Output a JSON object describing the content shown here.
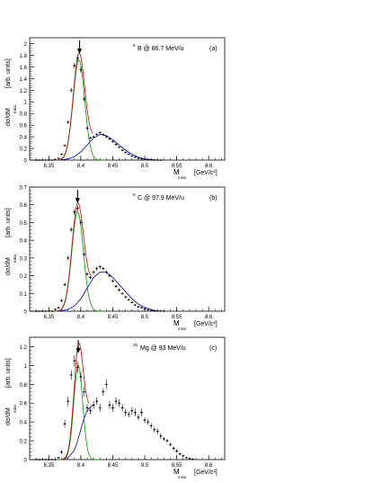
{
  "chart_data": [
    {
      "type": "scatter",
      "panel_label": "(a)",
      "beam_label": {
        "mass_number": "8",
        "text": "B @ 86.7 MeV/u"
      },
      "ylabel": {
        "main": "dσ/dM",
        "sub": "miss",
        "units": "[arb. units]"
      },
      "xlabel": {
        "main": "M",
        "sub": "miss",
        "units": "[GeV/c²]"
      },
      "xlim": [
        8.32,
        8.625
      ],
      "ylim": [
        0,
        2.1
      ],
      "x_ticks": [
        "8.35",
        "8.4",
        "8.45",
        "8.5",
        "8.55",
        "8.6"
      ],
      "y_ticks": [
        "0",
        "0.2",
        "0.4",
        "0.6",
        "0.8",
        "1",
        "1.2",
        "1.4",
        "1.6",
        "1.8",
        "2"
      ],
      "arrow_at": 8.398,
      "series": [
        {
          "x": [
            8.33,
            8.335,
            8.34,
            8.345,
            8.35,
            8.355,
            8.36,
            8.365,
            8.37,
            8.375,
            8.38,
            8.385,
            8.39,
            8.395,
            8.4,
            8.405,
            8.41,
            8.415,
            8.42,
            8.425,
            8.43,
            8.435,
            8.44,
            8.445,
            8.45,
            8.455,
            8.46,
            8.465,
            8.47,
            8.475,
            8.48,
            8.485,
            8.49,
            8.495,
            8.5,
            8.505,
            8.51,
            8.515,
            8.52,
            8.525
          ],
          "y": [
            0,
            0,
            0,
            0,
            0,
            0,
            0.01,
            0.03,
            0.1,
            0.25,
            0.65,
            1.2,
            1.62,
            1.75,
            1.55,
            1.05,
            0.55,
            0.38,
            0.4,
            0.44,
            0.47,
            0.44,
            0.4,
            0.36,
            0.32,
            0.27,
            0.22,
            0.17,
            0.13,
            0.1,
            0.07,
            0.05,
            0.03,
            0.02,
            0.01,
            0.01,
            0.005,
            0,
            0,
            0
          ],
          "yerr": [
            0,
            0,
            0,
            0,
            0,
            0,
            0.005,
            0.008,
            0.015,
            0.02,
            0.03,
            0.04,
            0.05,
            0.05,
            0.05,
            0.04,
            0.03,
            0.02,
            0.02,
            0.02,
            0.02,
            0.02,
            0.02,
            0.02,
            0.02,
            0.02,
            0.015,
            0.015,
            0.015,
            0.01,
            0.01,
            0.01,
            0.01,
            0.01,
            0.005,
            0.005,
            0.005,
            0,
            0,
            0
          ]
        }
      ],
      "fits": {
        "total": {
          "color": "#cc0000",
          "peak": 8.397,
          "width": 0.009,
          "amp": 1.72
        },
        "gauss": {
          "color": "#009900",
          "peak": 8.397,
          "width": 0.009,
          "amp": 1.72
        },
        "tail": {
          "color": "#0000cc",
          "x": [
            8.365,
            8.38,
            8.39,
            8.4,
            8.41,
            8.42,
            8.43,
            8.44,
            8.45,
            8.46,
            8.47,
            8.48,
            8.49,
            8.5,
            8.51,
            8.52
          ],
          "y": [
            0,
            0.02,
            0.06,
            0.14,
            0.26,
            0.38,
            0.44,
            0.42,
            0.35,
            0.26,
            0.17,
            0.1,
            0.05,
            0.02,
            0.01,
            0
          ]
        }
      }
    },
    {
      "type": "scatter",
      "panel_label": "(b)",
      "beam_label": {
        "mass_number": "9",
        "text": "C @ 97.9 MeV/u"
      },
      "ylabel": {
        "main": "dσ/dM",
        "sub": "miss",
        "units": "[arb. units]"
      },
      "xlabel": {
        "main": "M",
        "sub": "miss",
        "units": "[GeV/c²]"
      },
      "xlim": [
        8.32,
        8.625
      ],
      "ylim": [
        0,
        0.7
      ],
      "x_ticks": [
        "8.35",
        "8.4",
        "8.45",
        "8.5",
        "8.55",
        "8.6"
      ],
      "y_ticks": [
        "0",
        "0.1",
        "0.2",
        "0.3",
        "0.4",
        "0.5",
        "0.6",
        "0.7"
      ],
      "arrow_at": 8.395,
      "series": [
        {
          "x": [
            8.33,
            8.335,
            8.34,
            8.345,
            8.35,
            8.355,
            8.36,
            8.365,
            8.37,
            8.375,
            8.38,
            8.385,
            8.39,
            8.395,
            8.4,
            8.405,
            8.41,
            8.415,
            8.42,
            8.425,
            8.43,
            8.435,
            8.44,
            8.445,
            8.45,
            8.455,
            8.46,
            8.465,
            8.47,
            8.475,
            8.48,
            8.485,
            8.49,
            8.495,
            8.5,
            8.505,
            8.51,
            8.515,
            8.52,
            8.525,
            8.53
          ],
          "y": [
            0,
            0,
            0,
            0,
            0,
            0,
            0.01,
            0.02,
            0.06,
            0.15,
            0.3,
            0.46,
            0.56,
            0.58,
            0.5,
            0.32,
            0.21,
            0.19,
            0.22,
            0.24,
            0.25,
            0.24,
            0.22,
            0.2,
            0.17,
            0.14,
            0.12,
            0.1,
            0.08,
            0.065,
            0.05,
            0.035,
            0.025,
            0.02,
            0.012,
            0.008,
            0.005,
            0.003,
            0.002,
            0.001,
            0
          ],
          "yerr": [
            0,
            0,
            0,
            0,
            0,
            0,
            0.003,
            0.005,
            0.008,
            0.01,
            0.012,
            0.014,
            0.015,
            0.015,
            0.014,
            0.012,
            0.01,
            0.01,
            0.01,
            0.01,
            0.01,
            0.01,
            0.01,
            0.009,
            0.009,
            0.008,
            0.008,
            0.007,
            0.007,
            0.006,
            0.006,
            0.005,
            0.005,
            0.004,
            0.004,
            0.003,
            0.003,
            0.002,
            0.002,
            0.001,
            0
          ]
        }
      ],
      "fits": {
        "total": {
          "color": "#cc0000",
          "peak": 8.395,
          "width": 0.009,
          "amp": 0.56
        },
        "gauss": {
          "color": "#009900",
          "peak": 8.395,
          "width": 0.009,
          "amp": 0.56
        },
        "tail": {
          "color": "#0000cc",
          "x": [
            8.365,
            8.38,
            8.39,
            8.4,
            8.41,
            8.42,
            8.43,
            8.44,
            8.45,
            8.46,
            8.47,
            8.48,
            8.49,
            8.5,
            8.51,
            8.52
          ],
          "y": [
            0,
            0.01,
            0.03,
            0.07,
            0.13,
            0.19,
            0.22,
            0.22,
            0.19,
            0.15,
            0.11,
            0.07,
            0.04,
            0.02,
            0.01,
            0
          ]
        }
      }
    },
    {
      "type": "scatter",
      "panel_label": "(c)",
      "beam_label": {
        "mass_number": "25",
        "text": "Mg @ 93 MeV/u"
      },
      "ylabel": {
        "main": "dσ/dM",
        "sub": "miss",
        "units": "[arb. units]"
      },
      "xlabel": {
        "main": "M",
        "sub": "miss",
        "units": "[GeV/c²]"
      },
      "xlim": [
        8.32,
        8.625
      ],
      "ylim": [
        0,
        1.3
      ],
      "x_ticks": [
        "8.35",
        "8.4",
        "8.45",
        "8.5",
        "8.55",
        "8.6"
      ],
      "y_ticks": [
        "0",
        "0.2",
        "0.4",
        "0.6",
        "0.8",
        "1",
        "1.2"
      ],
      "arrow_at": 8.396,
      "series": [
        {
          "x": [
            8.33,
            8.335,
            8.34,
            8.345,
            8.35,
            8.355,
            8.36,
            8.365,
            8.37,
            8.375,
            8.38,
            8.385,
            8.39,
            8.395,
            8.4,
            8.405,
            8.41,
            8.415,
            8.42,
            8.425,
            8.43,
            8.435,
            8.44,
            8.445,
            8.45,
            8.455,
            8.46,
            8.465,
            8.47,
            8.475,
            8.48,
            8.485,
            8.49,
            8.495,
            8.5,
            8.505,
            8.51,
            8.515,
            8.52,
            8.525,
            8.53,
            8.535,
            8.54,
            8.545,
            8.55,
            8.555,
            8.56,
            8.565,
            8.57,
            8.575
          ],
          "y": [
            0,
            0,
            0,
            0,
            0,
            0,
            0,
            0.02,
            0.08,
            0.38,
            0.62,
            0.9,
            1.05,
            0.98,
            0.88,
            0.72,
            0.55,
            0.52,
            0.58,
            0.62,
            0.55,
            0.72,
            0.8,
            0.58,
            0.55,
            0.62,
            0.6,
            0.55,
            0.5,
            0.48,
            0.52,
            0.5,
            0.45,
            0.5,
            0.42,
            0.4,
            0.36,
            0.32,
            0.3,
            0.25,
            0.22,
            0.2,
            0.16,
            0.12,
            0.09,
            0.06,
            0.04,
            0.02,
            0.01,
            0.005
          ],
          "yerr": [
            0,
            0,
            0,
            0,
            0,
            0,
            0,
            0.01,
            0.02,
            0.04,
            0.05,
            0.05,
            0.06,
            0.06,
            0.05,
            0.05,
            0.04,
            0.04,
            0.04,
            0.04,
            0.04,
            0.04,
            0.05,
            0.04,
            0.04,
            0.04,
            0.04,
            0.04,
            0.04,
            0.03,
            0.04,
            0.04,
            0.03,
            0.04,
            0.03,
            0.03,
            0.03,
            0.03,
            0.03,
            0.03,
            0.02,
            0.02,
            0.02,
            0.02,
            0.02,
            0.015,
            0.01,
            0.01,
            0.005,
            0.005
          ]
        }
      ],
      "fits": {
        "total": {
          "color": "#cc0000",
          "peak": 8.396,
          "width": 0.007,
          "amp": 1.0
        },
        "gauss": {
          "color": "#009900",
          "peak": 8.396,
          "width": 0.007,
          "amp": 1.0
        },
        "tail": {
          "color": "#0000cc",
          "x": [
            8.37,
            8.38,
            8.39,
            8.395,
            8.4,
            8.405,
            8.41,
            8.415,
            8.42
          ],
          "y": [
            0,
            0.02,
            0.1,
            0.2,
            0.32,
            0.44,
            0.52,
            0.56,
            0.58
          ]
        }
      }
    }
  ]
}
